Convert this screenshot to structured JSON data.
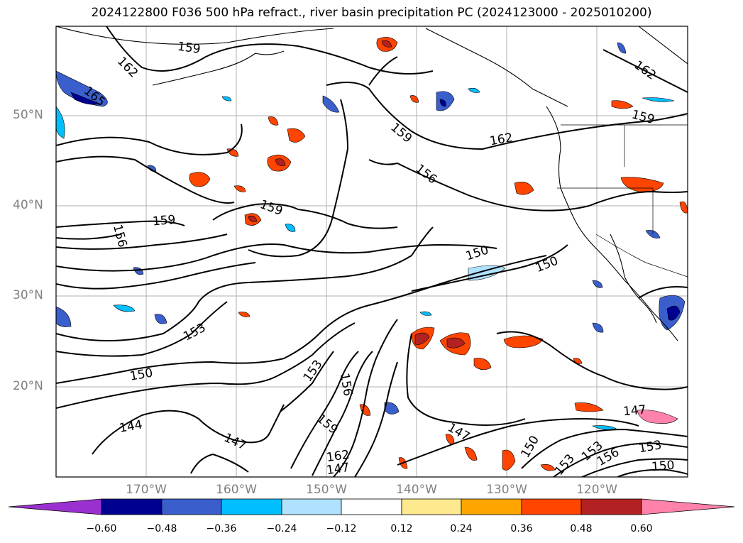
{
  "title": "2024122800 F036 500 hPa refract., river basin precipitation PC (2024123000 - 2025010200)",
  "lat_labels": [
    "50°N",
    "40°N",
    "30°N",
    "20°N"
  ],
  "lon_labels": [
    "170°W",
    "160°W",
    "150°W",
    "140°W",
    "130°W",
    "120°W"
  ],
  "contour_labels": [
    "159",
    "162",
    "165",
    "162",
    "159",
    "159",
    "156",
    "162",
    "159",
    "159",
    "156",
    "150",
    "150",
    "153",
    "150",
    "153",
    "156",
    "147",
    "144",
    "147",
    "159",
    "162",
    "147",
    "150",
    "153",
    "153",
    "156",
    "153",
    "150",
    "147"
  ],
  "colorbar": {
    "colors": [
      "#9b30d0",
      "#000090",
      "#3a5fcd",
      "#00bfff",
      "#b0e2ff",
      "#ffffff",
      "#ffe98f",
      "#ffa500",
      "#ff4500",
      "#b22222",
      "#ff82ab"
    ],
    "ticks": [
      "−0.60",
      "−0.48",
      "−0.36",
      "−0.24",
      "−0.12",
      "0.12",
      "0.24",
      "0.36",
      "0.48",
      "0.60"
    ]
  },
  "icons": [
    "coastline",
    "state-borders",
    "gridlines"
  ]
}
